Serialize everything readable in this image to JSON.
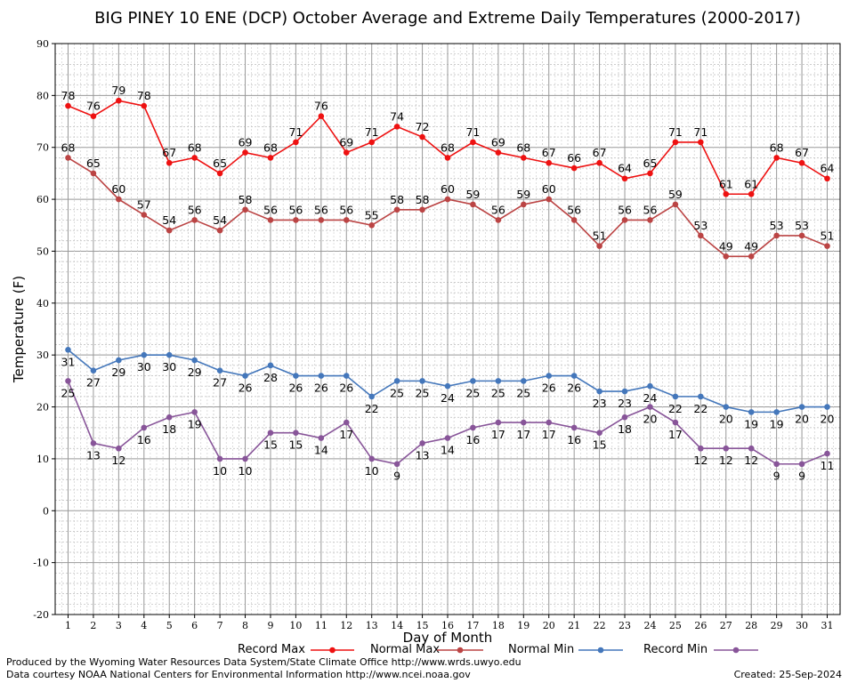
{
  "chart_data": {
    "type": "line",
    "title": "BIG PINEY 10 ENE (DCP) October Average and Extreme Daily Temperatures (2000-2017)",
    "xlabel": "Day of Month",
    "ylabel": "Temperature (F)",
    "ylim": [
      -20,
      90
    ],
    "yticks": [
      "-20",
      "-10",
      "0",
      "10",
      "20",
      "30",
      "40",
      "50",
      "60",
      "70",
      "80",
      "90"
    ],
    "xticks": [
      "1",
      "2",
      "3",
      "4",
      "5",
      "6",
      "7",
      "8",
      "9",
      "10",
      "11",
      "12",
      "13",
      "14",
      "15",
      "16",
      "17",
      "18",
      "19",
      "20",
      "21",
      "22",
      "23",
      "24",
      "25",
      "26",
      "27",
      "28",
      "29",
      "30",
      "31"
    ],
    "x": [
      1,
      2,
      3,
      4,
      5,
      6,
      7,
      8,
      9,
      10,
      11,
      12,
      13,
      14,
      15,
      16,
      17,
      18,
      19,
      20,
      21,
      22,
      23,
      24,
      25,
      26,
      27,
      28,
      29,
      30,
      31
    ],
    "grid": true,
    "legend_position": "bottom",
    "series": [
      {
        "name": "Record Max",
        "color": "#ee1111",
        "values": [
          78,
          76,
          79,
          78,
          67,
          68,
          65,
          69,
          68,
          71,
          76,
          69,
          71,
          74,
          72,
          68,
          71,
          69,
          68,
          67,
          66,
          67,
          64,
          65,
          71,
          71,
          61,
          61,
          68,
          67,
          64
        ],
        "labels": [
          "78",
          "76",
          "79",
          "78",
          "67",
          "68",
          "65",
          "69",
          "68",
          "71",
          "76",
          "69",
          "71",
          "74",
          "72",
          "68",
          "71",
          "69",
          "68",
          "67",
          "66",
          "67",
          "64",
          "65",
          "71",
          "71",
          "61",
          "61",
          "68",
          "67",
          "64"
        ]
      },
      {
        "name": "Normal Max",
        "color": "#bb4444",
        "values": [
          68,
          65,
          60,
          57,
          54,
          56,
          54,
          58,
          56,
          56,
          56,
          56,
          55,
          58,
          58,
          60,
          59,
          56,
          59,
          60,
          56,
          51,
          56,
          56,
          59,
          53,
          49,
          49,
          53,
          53,
          51
        ],
        "labels": [
          "68",
          "65",
          "60",
          "57",
          "54",
          "56",
          "54",
          "58",
          "56",
          "56",
          "56",
          "56",
          "55",
          "58",
          "58",
          "60",
          "59",
          "56",
          "59",
          "60",
          "56",
          "51",
          "56",
          "56",
          "59",
          "53",
          "49",
          "49",
          "53",
          "53",
          "51"
        ]
      },
      {
        "name": "Normal Min",
        "color": "#4477bb",
        "values": [
          31,
          27,
          29,
          30,
          30,
          29,
          27,
          26,
          28,
          26,
          26,
          26,
          22,
          25,
          25,
          24,
          25,
          25,
          25,
          26,
          26,
          23,
          23,
          24,
          22,
          22,
          20,
          19,
          19,
          20,
          20
        ],
        "labels": [
          "31",
          "27",
          "29",
          "30",
          "30",
          "29",
          "27",
          "26",
          "28",
          "26",
          "26",
          "26",
          "22",
          "25",
          "25",
          "24",
          "25",
          "25",
          "25",
          "26",
          "26",
          "23",
          "23",
          "24",
          "22",
          "22",
          "20",
          "19",
          "19",
          "20",
          "20"
        ]
      },
      {
        "name": "Record Min",
        "color": "#885599",
        "values": [
          25,
          13,
          12,
          16,
          18,
          19,
          10,
          10,
          15,
          15,
          14,
          17,
          10,
          9,
          13,
          14,
          16,
          17,
          17,
          17,
          16,
          15,
          18,
          20,
          17,
          12,
          12,
          12,
          9,
          9,
          11
        ],
        "labels": [
          "25",
          "13",
          "12",
          "16",
          "18",
          "19",
          "10",
          "10",
          "15",
          "15",
          "14",
          "17",
          "10",
          "9",
          "13",
          "14",
          "16",
          "17",
          "17",
          "17",
          "16",
          "15",
          "18",
          "20",
          "17",
          "12",
          "12",
          "12",
          "9",
          "9",
          "11"
        ]
      }
    ]
  },
  "footer": {
    "line1": "Produced by the Wyoming Water Resources Data System/State Climate Office http://www.wrds.uwyo.edu",
    "line2": "Data courtesy NOAA National Centers for Environmental Information http://www.ncei.noaa.gov",
    "created": "Created:  25-Sep-2024"
  }
}
